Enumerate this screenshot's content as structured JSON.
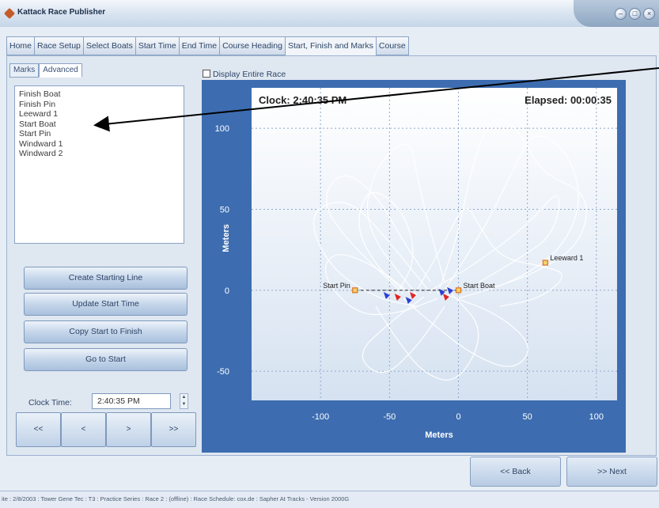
{
  "window": {
    "title": "Kattack Race Publisher",
    "controls": [
      "–",
      "□",
      "×"
    ]
  },
  "tabs": [
    {
      "label": "Home",
      "active": false
    },
    {
      "label": "Race Setup",
      "active": false
    },
    {
      "label": "Select Boats",
      "active": false
    },
    {
      "label": "Start Time",
      "active": false
    },
    {
      "label": "End Time",
      "active": false
    },
    {
      "label": "Course Heading",
      "active": false
    },
    {
      "label": "Start, Finish and Marks",
      "active": true
    },
    {
      "label": "Course",
      "active": false
    }
  ],
  "subtabs": [
    {
      "label": "Marks",
      "active": true
    },
    {
      "label": "Advanced",
      "active": false
    }
  ],
  "marks": [
    "Finish Boat",
    "Finish Pin",
    "Leeward 1",
    "Start Boat",
    "Start Pin",
    "Windward 1",
    "Windward 2"
  ],
  "buttons": {
    "create_start": "Create Starting Line",
    "update_start": "Update Start Time",
    "copy_start": "Copy Start to Finish",
    "go_start": "Go to Start",
    "back": "<< Back",
    "next": ">> Next"
  },
  "clock": {
    "label": "Clock Time:",
    "value": "2:40:35 PM"
  },
  "nav": [
    "<<",
    "<",
    ">",
    ">>"
  ],
  "display_entire_race": {
    "label": "Display Entire Race",
    "checked": false
  },
  "chart_data": {
    "type": "line",
    "title": "Clock: 2:40:35 PM",
    "elapsed": "Elapsed: 00:00:35",
    "xlabel": "Meters",
    "ylabel": "Meters",
    "xlim": [
      -150,
      115
    ],
    "ylim": [
      -68,
      125
    ],
    "x_ticks": [
      -100,
      -50,
      0,
      50,
      100
    ],
    "y_ticks": [
      100,
      50,
      0,
      -50
    ],
    "grid": true,
    "track_color": "#ffffff",
    "marks": [
      {
        "name": "Start Pin",
        "x": -75,
        "y": 0,
        "color": "#e07020"
      },
      {
        "name": "Start Boat",
        "x": 0,
        "y": 0,
        "color": "#e07020"
      },
      {
        "name": "Leeward 1",
        "x": 63,
        "y": 17,
        "color": "#e07020"
      }
    ],
    "start_line": {
      "x": [
        -75,
        0
      ],
      "y": [
        0,
        0
      ]
    },
    "boats": [
      {
        "x": -52,
        "y": -3,
        "color": "#2c3fd1"
      },
      {
        "x": -44,
        "y": -4,
        "color": "#e02424"
      },
      {
        "x": -36,
        "y": -6,
        "color": "#2c3fd1"
      },
      {
        "x": -33,
        "y": -3,
        "color": "#e02424"
      },
      {
        "x": -12,
        "y": -1,
        "color": "#2c3fd1"
      },
      {
        "x": -9,
        "y": -4,
        "color": "#e02424"
      },
      {
        "x": -6,
        "y": 0,
        "color": "#2c3fd1"
      }
    ],
    "tracks": [
      [
        [
          -40,
          -2
        ],
        [
          -80,
          30
        ],
        [
          -100,
          55
        ],
        [
          -85,
          75
        ],
        [
          -60,
          60
        ],
        [
          -40,
          30
        ],
        [
          -20,
          5
        ]
      ],
      [
        [
          -30,
          -3
        ],
        [
          -70,
          40
        ],
        [
          -60,
          78
        ],
        [
          -35,
          95
        ],
        [
          -30,
          70
        ],
        [
          -20,
          35
        ],
        [
          -10,
          5
        ]
      ],
      [
        [
          -20,
          -2
        ],
        [
          -50,
          30
        ],
        [
          -80,
          58
        ],
        [
          -110,
          48
        ],
        [
          -95,
          15
        ],
        [
          -60,
          -5
        ],
        [
          -30,
          -10
        ]
      ],
      [
        [
          -10,
          0
        ],
        [
          20,
          40
        ],
        [
          40,
          75
        ],
        [
          55,
          100
        ],
        [
          80,
          85
        ],
        [
          90,
          55
        ],
        [
          75,
          25
        ],
        [
          40,
          5
        ],
        [
          0,
          -5
        ]
      ],
      [
        [
          -15,
          -2
        ],
        [
          0,
          35
        ],
        [
          10,
          78
        ],
        [
          25,
          110
        ],
        [
          45,
          98
        ],
        [
          60,
          72
        ],
        [
          95,
          60
        ],
        [
          90,
          30
        ],
        [
          60,
          12
        ],
        [
          20,
          0
        ]
      ],
      [
        [
          -8,
          -3
        ],
        [
          30,
          -15
        ],
        [
          55,
          -35
        ],
        [
          40,
          -50
        ],
        [
          10,
          -40
        ],
        [
          -20,
          -20
        ],
        [
          -40,
          -5
        ]
      ],
      [
        [
          -5,
          -2
        ],
        [
          20,
          -25
        ],
        [
          0,
          -58
        ],
        [
          -25,
          -52
        ],
        [
          -45,
          -30
        ],
        [
          -60,
          -10
        ]
      ],
      [
        [
          -25,
          -4
        ],
        [
          -50,
          -20
        ],
        [
          -75,
          -40
        ],
        [
          -55,
          -55
        ],
        [
          -30,
          -35
        ],
        [
          -10,
          -10
        ]
      ],
      [
        [
          -35,
          -2
        ],
        [
          -60,
          15
        ],
        [
          -90,
          25
        ],
        [
          -100,
          10
        ],
        [
          -75,
          -15
        ],
        [
          -45,
          -15
        ],
        [
          -15,
          -5
        ]
      ],
      [
        [
          -30,
          0
        ],
        [
          -10,
          30
        ],
        [
          5,
          55
        ],
        [
          15,
          40
        ],
        [
          30,
          20
        ],
        [
          60,
          15
        ],
        [
          80,
          10
        ],
        [
          60,
          -5
        ],
        [
          30,
          -10
        ]
      ],
      [
        [
          -20,
          0
        ],
        [
          10,
          15
        ],
        [
          50,
          40
        ],
        [
          75,
          65
        ],
        [
          70,
          35
        ],
        [
          45,
          20
        ],
        [
          15,
          5
        ]
      ],
      [
        [
          -45,
          -3
        ],
        [
          -30,
          20
        ],
        [
          -40,
          50
        ],
        [
          -65,
          65
        ],
        [
          -75,
          40
        ],
        [
          -60,
          15
        ],
        [
          -40,
          0
        ]
      ]
    ]
  },
  "status_bar": "ite : 2/8/2003 : Tower Gene Tec : T3 : Practice Series : Race 2 : (offline) : Race Schedule: cox.de : Sapher At Tracks - Version 2000G"
}
